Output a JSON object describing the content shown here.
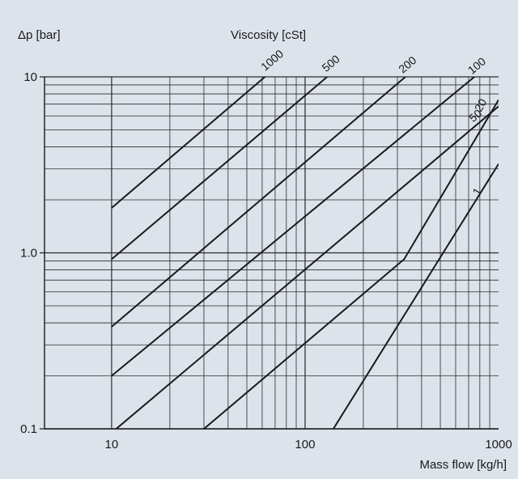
{
  "chart_data": {
    "type": "line",
    "title": "",
    "xlabel": "Mass flow [kg/h]",
    "ylabel": "Δp [bar]",
    "series_title": "Viscosity [cSt]",
    "x_scale": "log",
    "y_scale": "log",
    "xlim": [
      4.5,
      1000
    ],
    "ylim": [
      0.1,
      10
    ],
    "x_ticks": [
      {
        "value": 10,
        "label": "10"
      },
      {
        "value": 100,
        "label": "100"
      },
      {
        "value": 1000,
        "label": "1000"
      }
    ],
    "y_ticks": [
      {
        "value": 0.1,
        "label": "0.1"
      },
      {
        "value": 1,
        "label": "1.0"
      },
      {
        "value": 10,
        "label": "10"
      }
    ],
    "grid": true,
    "series": [
      {
        "name": "1000",
        "points": [
          [
            10,
            1.8
          ],
          [
            62,
            10
          ]
        ]
      },
      {
        "name": "500",
        "points": [
          [
            10,
            0.92
          ],
          [
            130,
            10
          ]
        ]
      },
      {
        "name": "200",
        "points": [
          [
            10,
            0.38
          ],
          [
            330,
            10
          ]
        ]
      },
      {
        "name": "100",
        "points": [
          [
            10,
            0.2
          ],
          [
            750,
            10
          ]
        ]
      },
      {
        "name": "50",
        "points": [
          [
            10,
            0.095
          ],
          [
            1000,
            6.8
          ]
        ]
      },
      {
        "name": "20",
        "points": [
          [
            30,
            0.1
          ],
          [
            325,
            0.92
          ],
          [
            1000,
            7.4
          ]
        ]
      },
      {
        "name": "1",
        "points": [
          [
            140,
            0.1
          ],
          [
            1000,
            3.2
          ]
        ]
      }
    ],
    "line_color": "#1a1a1a",
    "grid_color": "#2a2a2a",
    "background_color": "#dde3ea"
  }
}
